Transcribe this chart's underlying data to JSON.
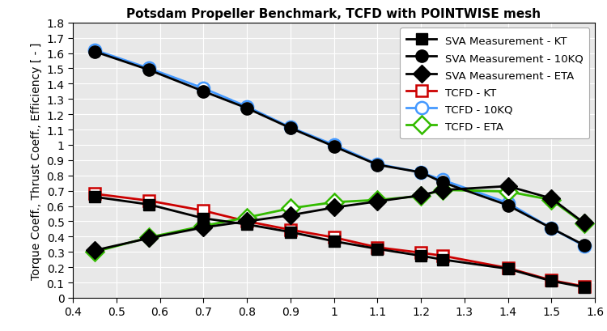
{
  "title": "Potsdam Propeller Benchmark, TCFD with POINTWISE mesh",
  "ylabel": "Torque Coeff., Thrust Coeff., Efficiency [ - ]",
  "xlim": [
    0.4,
    1.6
  ],
  "ylim": [
    0.0,
    1.8
  ],
  "xticks": [
    0.4,
    0.5,
    0.6,
    0.7,
    0.8,
    0.9,
    1.0,
    1.1,
    1.2,
    1.3,
    1.4,
    1.5,
    1.6
  ],
  "yticks": [
    0.0,
    0.1,
    0.2,
    0.3,
    0.4,
    0.5,
    0.6,
    0.7,
    0.8,
    0.9,
    1.0,
    1.1,
    1.2,
    1.3,
    1.4,
    1.5,
    1.6,
    1.7,
    1.8
  ],
  "sva_kt_x": [
    0.45,
    0.575,
    0.7,
    0.8,
    0.9,
    1.0,
    1.1,
    1.2,
    1.25,
    1.4,
    1.5,
    1.575
  ],
  "sva_kt_y": [
    0.66,
    0.61,
    0.52,
    0.48,
    0.43,
    0.37,
    0.32,
    0.275,
    0.25,
    0.19,
    0.11,
    0.07
  ],
  "sva_10kq_x": [
    0.45,
    0.575,
    0.7,
    0.8,
    0.9,
    1.0,
    1.1,
    1.2,
    1.25,
    1.4,
    1.5,
    1.575
  ],
  "sva_10kq_y": [
    1.61,
    1.49,
    1.35,
    1.24,
    1.11,
    0.99,
    0.87,
    0.82,
    0.755,
    0.605,
    0.455,
    0.345
  ],
  "sva_eta_x": [
    0.45,
    0.575,
    0.7,
    0.8,
    0.9,
    1.0,
    1.1,
    1.2,
    1.25,
    1.4,
    1.5,
    1.575
  ],
  "sva_eta_y": [
    0.31,
    0.39,
    0.46,
    0.5,
    0.54,
    0.59,
    0.63,
    0.67,
    0.705,
    0.73,
    0.65,
    0.49
  ],
  "tcfd_kt_x": [
    0.45,
    0.575,
    0.7,
    0.8,
    0.9,
    1.0,
    1.1,
    1.2,
    1.25,
    1.4,
    1.5,
    1.575
  ],
  "tcfd_kt_y": [
    0.68,
    0.635,
    0.57,
    0.5,
    0.445,
    0.395,
    0.33,
    0.295,
    0.275,
    0.195,
    0.115,
    0.075
  ],
  "tcfd_10kq_x": [
    0.45,
    0.575,
    0.7,
    0.8,
    0.9,
    1.0,
    1.1,
    1.2,
    1.25,
    1.4,
    1.5,
    1.575
  ],
  "tcfd_10kq_y": [
    1.62,
    1.5,
    1.37,
    1.25,
    1.115,
    1.0,
    0.875,
    0.82,
    0.77,
    0.62,
    0.455,
    0.34
  ],
  "tcfd_eta_x": [
    0.45,
    0.575,
    0.7,
    0.8,
    0.9,
    1.0,
    1.1,
    1.2,
    1.25,
    1.4,
    1.5,
    1.575
  ],
  "tcfd_eta_y": [
    0.3,
    0.395,
    0.47,
    0.525,
    0.585,
    0.625,
    0.64,
    0.665,
    0.705,
    0.695,
    0.64,
    0.485
  ],
  "color_sva": "#000000",
  "color_tcfd_kt": "#cc0000",
  "color_tcfd_10kq": "#4499ff",
  "color_tcfd_eta": "#33bb00",
  "plot_bg": "#e8e8e8",
  "grid_color": "#ffffff",
  "legend_labels": [
    "SVA Measurement - KT",
    "SVA Measurement - 10KQ",
    "SVA Measurement - ETA",
    "TCFD - KT",
    "TCFD - 10KQ",
    "TCFD - ETA"
  ]
}
